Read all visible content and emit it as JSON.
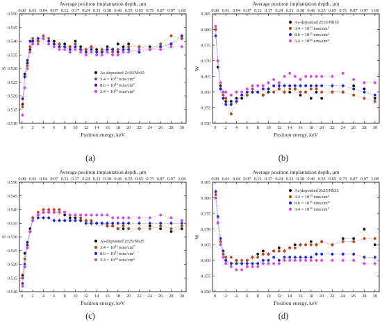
{
  "figure": {
    "background": "#ffffff"
  },
  "series_styles": [
    {
      "key": "as_deposited",
      "color": "#111111",
      "line": "#888888"
    },
    {
      "key": "dose_1",
      "color": "#b5451b",
      "line": "#c86b4a"
    },
    {
      "key": "dose_2",
      "color": "#2222cc",
      "line": "#4f4fd8"
    },
    {
      "key": "dose_3",
      "color": "#d444e6",
      "line": "#dc7be9"
    }
  ],
  "chart_data": [
    {
      "type": "scatter",
      "panel_label": "(a)",
      "top_axis_label": "Average positron implantation depth, μm",
      "top_ticks": [
        "0.00",
        "0.01",
        "0.04",
        "0.07",
        "0.12",
        "0.17",
        "0.24",
        "0.31",
        "0.38",
        "0.46",
        "0.55",
        "0.65",
        "0.75",
        "0.87",
        "0.97",
        "1.08"
      ],
      "xlabel": "Positron energy, keV",
      "ylabel": "S",
      "xlim": [
        -0.5,
        30.8
      ],
      "ylim": [
        0.51,
        0.55
      ],
      "xticks": [
        0,
        2,
        4,
        6,
        8,
        10,
        12,
        14,
        16,
        18,
        20,
        22,
        24,
        26,
        28,
        30
      ],
      "yticks": [
        0.51,
        0.515,
        0.52,
        0.525,
        0.53,
        0.535,
        0.54,
        0.545,
        0.55
      ],
      "ytick_labels": [
        "0.510",
        "0.515",
        "0.520",
        "0.525",
        "0.530",
        "0.535",
        "0.540",
        "0.545",
        "0.550"
      ],
      "legend_position": "center-right",
      "x": [
        0.1,
        0.5,
        1,
        1.5,
        2,
        3,
        4,
        5,
        6,
        7,
        8,
        9,
        10,
        11,
        12,
        13,
        14,
        15,
        16,
        17,
        18,
        19,
        20,
        22,
        24,
        26,
        28,
        30
      ],
      "series": [
        {
          "name": "As-deposited Zr10/Nb10",
          "values": [
            0.517,
            0.528,
            0.532,
            0.537,
            0.54,
            0.54,
            0.541,
            0.54,
            0.54,
            0.539,
            0.539,
            0.538,
            0.54,
            0.538,
            0.537,
            0.538,
            0.537,
            0.536,
            0.538,
            0.537,
            0.539,
            0.538,
            0.539,
            0.538,
            0.538,
            0.538,
            0.539,
            0.541
          ]
        },
        {
          "name": "3.4 × 10^13 ions/cm^2",
          "values": [
            0.516,
            0.527,
            0.531,
            0.538,
            0.541,
            0.54,
            0.542,
            0.541,
            0.539,
            0.539,
            0.538,
            0.538,
            0.539,
            0.537,
            0.537,
            0.538,
            0.536,
            0.537,
            0.537,
            0.536,
            0.537,
            0.537,
            0.538,
            0.538,
            0.537,
            0.539,
            0.542,
            0.541
          ]
        },
        {
          "name": "8.6 × 10^15 ions/cm^2",
          "values": [
            0.519,
            0.527,
            0.533,
            0.54,
            0.54,
            0.541,
            0.541,
            0.54,
            0.539,
            0.538,
            0.538,
            0.537,
            0.538,
            0.537,
            0.536,
            0.537,
            0.536,
            0.536,
            0.537,
            0.537,
            0.536,
            0.537,
            0.537,
            0.536,
            0.537,
            0.538,
            0.539,
            0.542
          ]
        },
        {
          "name": "3.4 × 10^16 ions/cm^2",
          "values": [
            0.513,
            0.523,
            0.53,
            0.536,
            0.539,
            0.539,
            0.541,
            0.539,
            0.538,
            0.537,
            0.537,
            0.536,
            0.537,
            0.536,
            0.535,
            0.536,
            0.535,
            0.535,
            0.536,
            0.535,
            0.535,
            0.536,
            0.536,
            0.537,
            0.537,
            0.537,
            0.538,
            0.538
          ]
        }
      ]
    },
    {
      "type": "scatter",
      "panel_label": "(b)",
      "top_axis_label": "Average positron implantation depth, μm",
      "top_ticks": [
        "0.00",
        "0.01",
        "0.04",
        "0.07",
        "0.12",
        "0.17",
        "0.24",
        "0.31",
        "0.38",
        "0.46",
        "0.55",
        "0.65",
        "0.75",
        "0.87",
        "0.97",
        "1.08"
      ],
      "xlabel": "Positron energy, keV",
      "ylabel": "W",
      "xlim": [
        -0.5,
        30.8
      ],
      "ylim": [
        0.15,
        0.185
      ],
      "xticks": [
        0,
        2,
        4,
        6,
        8,
        10,
        12,
        14,
        16,
        18,
        20,
        22,
        24,
        26,
        28,
        30
      ],
      "yticks": [
        0.15,
        0.155,
        0.16,
        0.165,
        0.17,
        0.175,
        0.18,
        0.185
      ],
      "ytick_labels": [
        "0.150",
        "0.155",
        "0.160",
        "0.165",
        "0.170",
        "0.175",
        "0.180",
        "0.185"
      ],
      "legend_position": "top-right",
      "x": [
        0.1,
        0.5,
        1,
        1.5,
        2,
        3,
        4,
        5,
        6,
        7,
        8,
        9,
        10,
        11,
        12,
        13,
        14,
        15,
        16,
        17,
        18,
        19,
        20,
        22,
        24,
        26,
        28,
        30
      ],
      "series": [
        {
          "name": "As-deposited Zr10/Nb10",
          "values": [
            0.18,
            0.168,
            0.162,
            0.16,
            0.157,
            0.157,
            0.158,
            0.158,
            0.159,
            0.16,
            0.16,
            0.159,
            0.16,
            0.16,
            0.161,
            0.16,
            0.16,
            0.161,
            0.159,
            0.16,
            0.158,
            0.16,
            0.158,
            0.16,
            0.16,
            0.162,
            0.161,
            0.158
          ]
        },
        {
          "name": "3.4 × 10^13 ions/cm^2",
          "values": [
            0.18,
            0.17,
            0.161,
            0.159,
            0.158,
            0.153,
            0.157,
            0.159,
            0.159,
            0.161,
            0.16,
            0.159,
            0.161,
            0.16,
            0.161,
            0.16,
            0.161,
            0.161,
            0.16,
            0.16,
            0.161,
            0.161,
            0.16,
            0.16,
            0.16,
            0.159,
            0.158,
            0.157
          ]
        },
        {
          "name": "8.6 × 10^15 ions/cm^2",
          "values": [
            0.178,
            0.17,
            0.161,
            0.158,
            0.156,
            0.156,
            0.157,
            0.159,
            0.16,
            0.16,
            0.16,
            0.161,
            0.161,
            0.162,
            0.162,
            0.162,
            0.162,
            0.162,
            0.162,
            0.162,
            0.162,
            0.162,
            0.162,
            0.162,
            0.162,
            0.161,
            0.16,
            0.159
          ]
        },
        {
          "name": "3.4 × 10^16 ions/cm^2",
          "values": [
            0.181,
            0.17,
            0.163,
            0.16,
            0.16,
            0.159,
            0.16,
            0.16,
            0.161,
            0.162,
            0.162,
            0.162,
            0.163,
            0.164,
            0.163,
            0.165,
            0.166,
            0.165,
            0.164,
            0.165,
            0.165,
            0.165,
            0.165,
            0.165,
            0.166,
            0.164,
            0.163,
            0.163
          ]
        }
      ]
    },
    {
      "type": "scatter",
      "panel_label": "(c)",
      "top_axis_label": "Average positron implantation depth, μm",
      "top_ticks": [
        "0.00",
        "0.01",
        "0.04",
        "0.07",
        "0.12",
        "0.17",
        "0.24",
        "0.31",
        "0.38",
        "0.46",
        "0.55",
        "0.65",
        "0.75",
        "0.87",
        "0.97",
        "1.08"
      ],
      "xlabel": "Positron energy, keV",
      "ylabel": "S",
      "xlim": [
        -0.5,
        30.8
      ],
      "ylim": [
        0.51,
        0.55
      ],
      "xticks": [
        0,
        2,
        4,
        6,
        8,
        10,
        12,
        14,
        16,
        18,
        20,
        22,
        24,
        26,
        28,
        30
      ],
      "yticks": [
        0.51,
        0.515,
        0.52,
        0.525,
        0.53,
        0.535,
        0.54,
        0.545,
        0.55
      ],
      "ytick_labels": [
        "0.510",
        "0.515",
        "0.520",
        "0.525",
        "0.530",
        "0.535",
        "0.540",
        "0.545",
        "0.550"
      ],
      "legend_position": "center-right",
      "x": [
        0.1,
        0.5,
        1,
        1.5,
        2,
        3,
        4,
        5,
        6,
        7,
        8,
        9,
        10,
        11,
        12,
        13,
        14,
        15,
        16,
        17,
        18,
        19,
        20,
        22,
        24,
        26,
        28,
        30
      ],
      "series": [
        {
          "name": "As-deposited Zr25/Nb25",
          "values": [
            0.516,
            0.524,
            0.528,
            0.533,
            0.537,
            0.538,
            0.539,
            0.539,
            0.539,
            0.539,
            0.538,
            0.537,
            0.537,
            0.536,
            0.536,
            0.535,
            0.535,
            0.535,
            0.534,
            0.534,
            0.533,
            0.533,
            0.533,
            0.533,
            0.534,
            0.533,
            0.532,
            0.533
          ]
        },
        {
          "name": "3.4 × 10^13 ions/cm^2",
          "values": [
            0.515,
            0.522,
            0.527,
            0.532,
            0.537,
            0.539,
            0.54,
            0.54,
            0.54,
            0.54,
            0.539,
            0.538,
            0.538,
            0.537,
            0.536,
            0.536,
            0.535,
            0.535,
            0.534,
            0.534,
            0.533,
            0.534,
            0.533,
            0.533,
            0.533,
            0.534,
            0.533,
            0.534
          ]
        },
        {
          "name": "8.6 × 10^15 ions/cm^2",
          "values": [
            0.513,
            0.52,
            0.527,
            0.532,
            0.536,
            0.537,
            0.537,
            0.537,
            0.536,
            0.536,
            0.536,
            0.536,
            0.536,
            0.536,
            0.535,
            0.535,
            0.535,
            0.535,
            0.535,
            0.535,
            0.535,
            0.535,
            0.535,
            0.535,
            0.535,
            0.535,
            0.535,
            0.535
          ]
        },
        {
          "name": "3.4 × 10^16 ions/cm^2",
          "values": [
            0.512,
            0.519,
            0.526,
            0.532,
            0.536,
            0.538,
            0.539,
            0.539,
            0.539,
            0.539,
            0.539,
            0.538,
            0.538,
            0.538,
            0.538,
            0.538,
            0.538,
            0.538,
            0.538,
            0.537,
            0.537,
            0.537,
            0.537,
            0.537,
            0.537,
            0.538,
            0.537,
            0.536
          ]
        }
      ]
    },
    {
      "type": "scatter",
      "panel_label": "(d)",
      "top_axis_label": "Average positron implantation depth, μm",
      "top_ticks": [
        "0.00",
        "0.01",
        "0.04",
        "0.07",
        "0.12",
        "0.17",
        "0.24",
        "0.31",
        "0.38",
        "0.46",
        "0.55",
        "0.65",
        "0.75",
        "0.87",
        "0.97",
        "1.08"
      ],
      "xlabel": "Positron energy, keV",
      "ylabel": "W",
      "xlim": [
        -0.5,
        30.8
      ],
      "ylim": [
        0.15,
        0.185
      ],
      "xticks": [
        0,
        2,
        4,
        6,
        8,
        10,
        12,
        14,
        16,
        18,
        20,
        22,
        24,
        26,
        28,
        30
      ],
      "yticks": [
        0.15,
        0.155,
        0.16,
        0.165,
        0.17,
        0.175,
        0.18,
        0.185
      ],
      "ytick_labels": [
        "0.150",
        "0.155",
        "0.160",
        "0.165",
        "0.170",
        "0.175",
        "0.180",
        "0.185"
      ],
      "legend_position": "top-right",
      "x": [
        0.1,
        0.5,
        1,
        1.5,
        2,
        3,
        4,
        5,
        6,
        7,
        8,
        9,
        10,
        11,
        12,
        13,
        14,
        15,
        16,
        17,
        18,
        19,
        20,
        22,
        24,
        26,
        28,
        30
      ],
      "series": [
        {
          "name": "As-deposited Zr25/Nb25",
          "values": [
            0.18,
            0.172,
            0.166,
            0.162,
            0.16,
            0.159,
            0.16,
            0.159,
            0.16,
            0.161,
            0.162,
            0.163,
            0.162,
            0.163,
            0.164,
            0.163,
            0.164,
            0.165,
            0.165,
            0.165,
            0.166,
            0.165,
            0.166,
            0.165,
            0.167,
            0.167,
            0.17,
            0.165
          ]
        },
        {
          "name": "3.4 × 10^13 ions/cm^2",
          "values": [
            0.181,
            0.172,
            0.166,
            0.162,
            0.161,
            0.161,
            0.16,
            0.16,
            0.16,
            0.161,
            0.161,
            0.162,
            0.162,
            0.163,
            0.163,
            0.163,
            0.164,
            0.164,
            0.165,
            0.165,
            0.165,
            0.165,
            0.166,
            0.165,
            0.166,
            0.166,
            0.167,
            0.167
          ]
        },
        {
          "name": "8.6 × 10^15 ions/cm^2",
          "values": [
            0.182,
            0.174,
            0.167,
            0.163,
            0.16,
            0.159,
            0.159,
            0.159,
            0.159,
            0.159,
            0.159,
            0.16,
            0.16,
            0.161,
            0.16,
            0.161,
            0.161,
            0.161,
            0.161,
            0.161,
            0.161,
            0.162,
            0.162,
            0.162,
            0.162,
            0.162,
            0.161,
            0.161
          ]
        },
        {
          "name": "3.4 × 10^16 ions/cm^2",
          "values": [
            0.18,
            0.172,
            0.165,
            0.161,
            0.159,
            0.158,
            0.157,
            0.157,
            0.158,
            0.158,
            0.158,
            0.159,
            0.159,
            0.159,
            0.159,
            0.16,
            0.16,
            0.16,
            0.16,
            0.16,
            0.16,
            0.16,
            0.16,
            0.16,
            0.16,
            0.16,
            0.159,
            0.159
          ]
        }
      ]
    }
  ]
}
